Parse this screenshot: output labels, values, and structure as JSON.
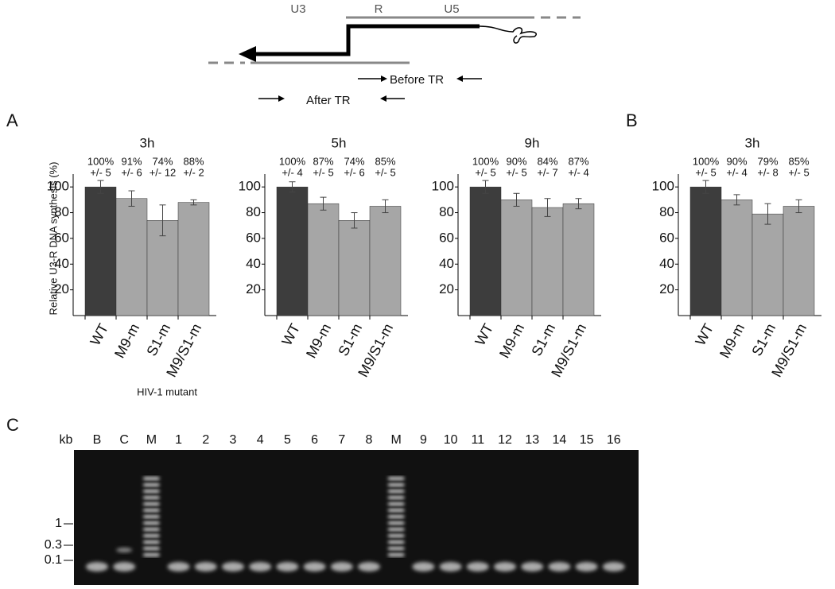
{
  "diagram": {
    "labels": [
      "U3",
      "R",
      "U5"
    ],
    "primers": [
      "Before TR",
      "After TR"
    ]
  },
  "panel_labels": [
    "A",
    "B",
    "C"
  ],
  "chart_data": [
    {
      "type": "bar",
      "title": "3h",
      "ylabel": "Relative U3-R DNA synthesis (%)",
      "xlabel": "HIV-1 mutant",
      "categories": [
        "WT",
        "M9-m",
        "S1-m",
        "M9/S1-m"
      ],
      "values": [
        100,
        91,
        74,
        88
      ],
      "errors": [
        5,
        6,
        12,
        2
      ],
      "value_labels": [
        "100%",
        "91%",
        "74%",
        "88%"
      ],
      "error_labels": [
        "+/- 5",
        "+/- 6",
        "+/- 12",
        "+/- 2"
      ],
      "colors": [
        "#3d3d3d",
        "#a6a6a6",
        "#a6a6a6",
        "#a6a6a6"
      ],
      "ylim": [
        0,
        110
      ],
      "yticks": [
        20,
        40,
        60,
        80,
        100
      ]
    },
    {
      "type": "bar",
      "title": "5h",
      "categories": [
        "WT",
        "M9-m",
        "S1-m",
        "M9/S1-m"
      ],
      "values": [
        100,
        87,
        74,
        85
      ],
      "errors": [
        4,
        5,
        6,
        5
      ],
      "value_labels": [
        "100%",
        "87%",
        "74%",
        "85%"
      ],
      "error_labels": [
        "+/- 4",
        "+/- 5",
        "+/- 6",
        "+/- 5"
      ],
      "colors": [
        "#3d3d3d",
        "#a6a6a6",
        "#a6a6a6",
        "#a6a6a6"
      ],
      "ylim": [
        0,
        110
      ],
      "yticks": [
        20,
        40,
        60,
        80,
        100
      ]
    },
    {
      "type": "bar",
      "title": "9h",
      "categories": [
        "WT",
        "M9-m",
        "S1-m",
        "M9/S1-m"
      ],
      "values": [
        100,
        90,
        84,
        87
      ],
      "errors": [
        5,
        5,
        7,
        4
      ],
      "value_labels": [
        "100%",
        "90%",
        "84%",
        "87%"
      ],
      "error_labels": [
        "+/- 5",
        "+/- 5",
        "+/- 7",
        "+/- 4"
      ],
      "colors": [
        "#3d3d3d",
        "#a6a6a6",
        "#a6a6a6",
        "#a6a6a6"
      ],
      "ylim": [
        0,
        110
      ],
      "yticks": [
        20,
        40,
        60,
        80,
        100
      ]
    },
    {
      "type": "bar",
      "title": "3h",
      "categories": [
        "WT",
        "M9-m",
        "S1-m",
        "M9/S1-m"
      ],
      "values": [
        100,
        90,
        79,
        85
      ],
      "errors": [
        5,
        4,
        8,
        5
      ],
      "value_labels": [
        "100%",
        "90%",
        "79%",
        "85%"
      ],
      "error_labels": [
        "+/- 5",
        "+/- 4",
        "+/- 8",
        "+/- 5"
      ],
      "colors": [
        "#3d3d3d",
        "#a6a6a6",
        "#a6a6a6",
        "#a6a6a6"
      ],
      "ylim": [
        0,
        110
      ],
      "yticks": [
        20,
        40,
        60,
        80,
        100
      ]
    }
  ],
  "gel": {
    "unit": "kb",
    "lanes": [
      "B",
      "C",
      "M",
      "1",
      "2",
      "3",
      "4",
      "5",
      "6",
      "7",
      "8",
      "M",
      "9",
      "10",
      "11",
      "12",
      "13",
      "14",
      "15",
      "16"
    ],
    "size_markers": [
      "1",
      "0.3",
      "0.1"
    ]
  }
}
